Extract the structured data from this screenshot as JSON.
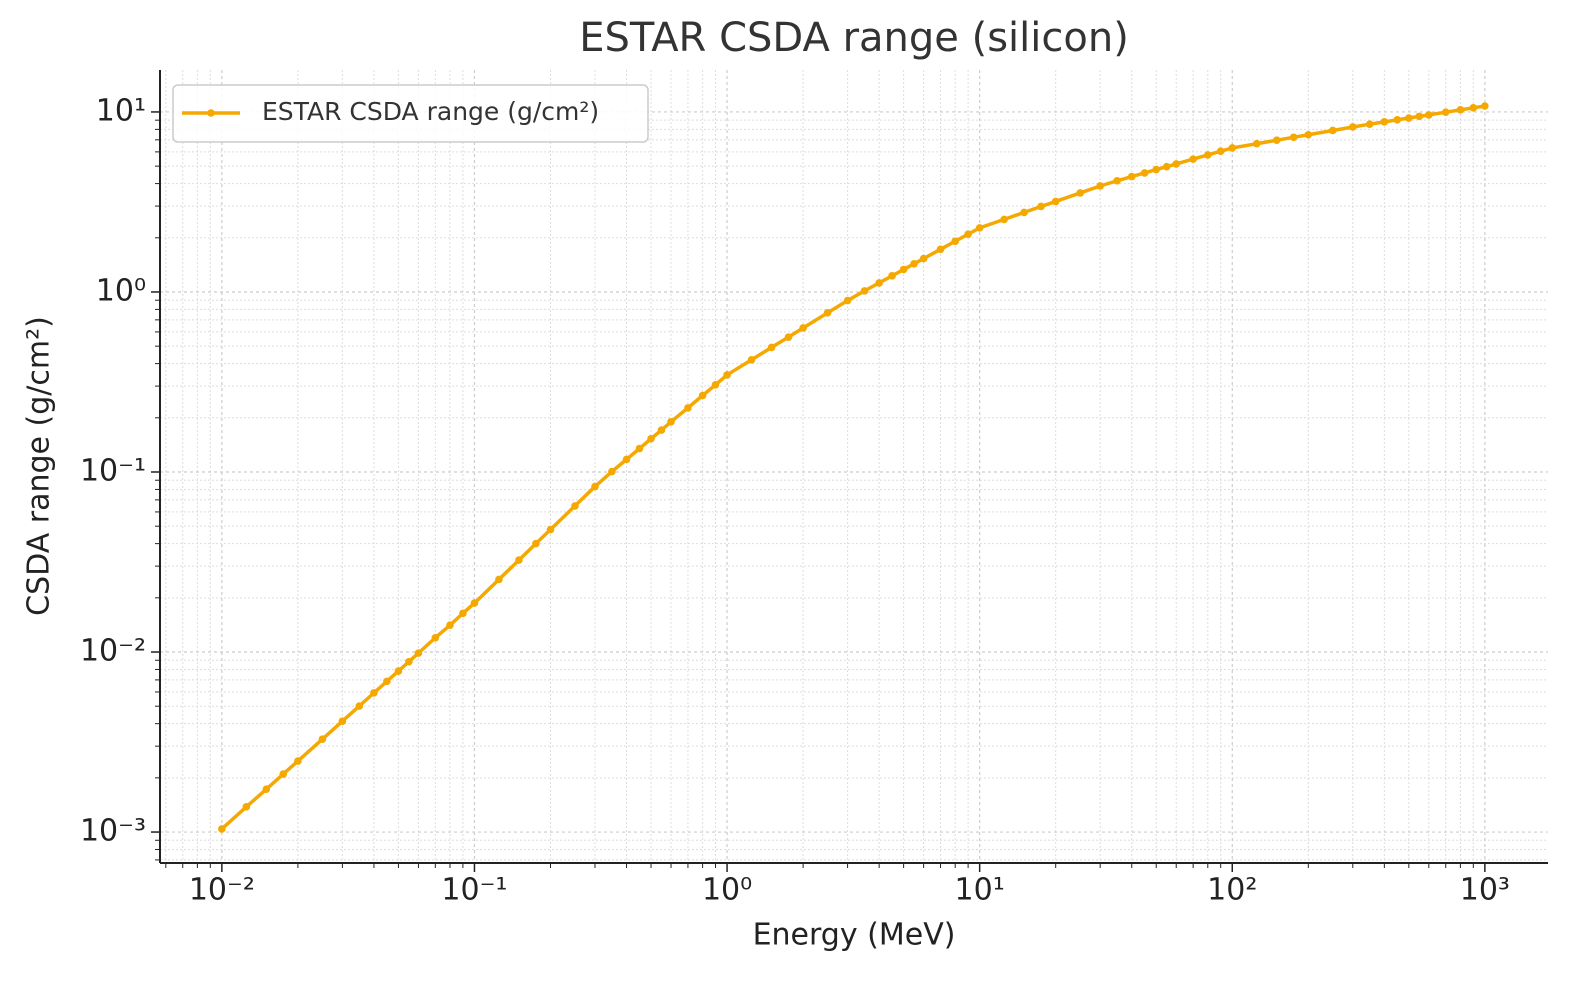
{
  "chart_data": {
    "type": "line",
    "title": "ESTAR CSDA range (silicon)",
    "x_label": "Energy (MeV)",
    "y_label": "CSDA range (g/cm²)",
    "x_scale": "log",
    "y_scale": "log",
    "grid": true,
    "minor_grid": true,
    "legend": "upper left",
    "xlim": [
      0.00569,
      1778
    ],
    "ylim": [
      0.000673,
      17.1
    ],
    "xticks": [
      {
        "value": 0.01,
        "label": "10⁻²"
      },
      {
        "value": 0.1,
        "label": "10⁻¹"
      },
      {
        "value": 1,
        "label": "10⁰"
      },
      {
        "value": 10,
        "label": "10¹"
      },
      {
        "value": 100,
        "label": "10²"
      },
      {
        "value": 1000,
        "label": "10³"
      }
    ],
    "yticks": [
      {
        "value": 0.001,
        "label": "10⁻³"
      },
      {
        "value": 0.01,
        "label": "10⁻²"
      },
      {
        "value": 0.1,
        "label": "10⁻¹"
      },
      {
        "value": 1,
        "label": "10⁰"
      },
      {
        "value": 10,
        "label": "10¹"
      }
    ],
    "x": [
      0.01,
      0.0125,
      0.015,
      0.0175,
      0.02,
      0.025,
      0.03,
      0.035,
      0.04,
      0.045,
      0.05,
      0.055,
      0.06,
      0.07,
      0.08,
      0.09,
      0.1,
      0.125,
      0.15,
      0.175,
      0.2,
      0.25,
      0.3,
      0.35,
      0.4,
      0.45,
      0.5,
      0.55,
      0.6,
      0.7,
      0.8,
      0.9,
      1,
      1.25,
      1.5,
      1.75,
      2,
      2.5,
      3,
      3.5,
      4,
      4.5,
      5,
      5.5,
      6,
      7,
      8,
      9,
      10,
      12.5,
      15,
      17.5,
      20,
      25,
      30,
      35,
      40,
      45,
      50,
      55,
      60,
      70,
      80,
      90,
      100,
      125,
      150,
      175,
      200,
      250,
      300,
      350,
      400,
      450,
      500,
      550,
      600,
      700,
      800,
      900,
      1000
    ],
    "series": [
      {
        "name": "ESTAR CSDA range (g/cm²)",
        "color": "#f5a800",
        "values": [
          0.00104,
          0.00138,
          0.00173,
          0.0021,
          0.00248,
          0.00328,
          0.00413,
          0.00501,
          0.00593,
          0.00687,
          0.00784,
          0.00883,
          0.00986,
          0.012,
          0.0141,
          0.0164,
          0.0187,
          0.0253,
          0.0324,
          0.04,
          0.0479,
          0.0648,
          0.083,
          0.1005,
          0.1175,
          0.135,
          0.153,
          0.171,
          0.19,
          0.227,
          0.266,
          0.305,
          0.346,
          0.42,
          0.492,
          0.561,
          0.631,
          0.766,
          0.896,
          1.014,
          1.123,
          1.229,
          1.333,
          1.434,
          1.533,
          1.726,
          1.913,
          2.093,
          2.27,
          2.53,
          2.767,
          2.985,
          3.184,
          3.548,
          3.879,
          4.147,
          4.374,
          4.585,
          4.783,
          4.968,
          5.144,
          5.47,
          5.77,
          6.05,
          6.31,
          6.66,
          6.97,
          7.23,
          7.47,
          7.89,
          8.25,
          8.55,
          8.81,
          9.04,
          9.25,
          9.45,
          9.63,
          9.97,
          10.27,
          10.54,
          10.79
        ]
      }
    ]
  }
}
